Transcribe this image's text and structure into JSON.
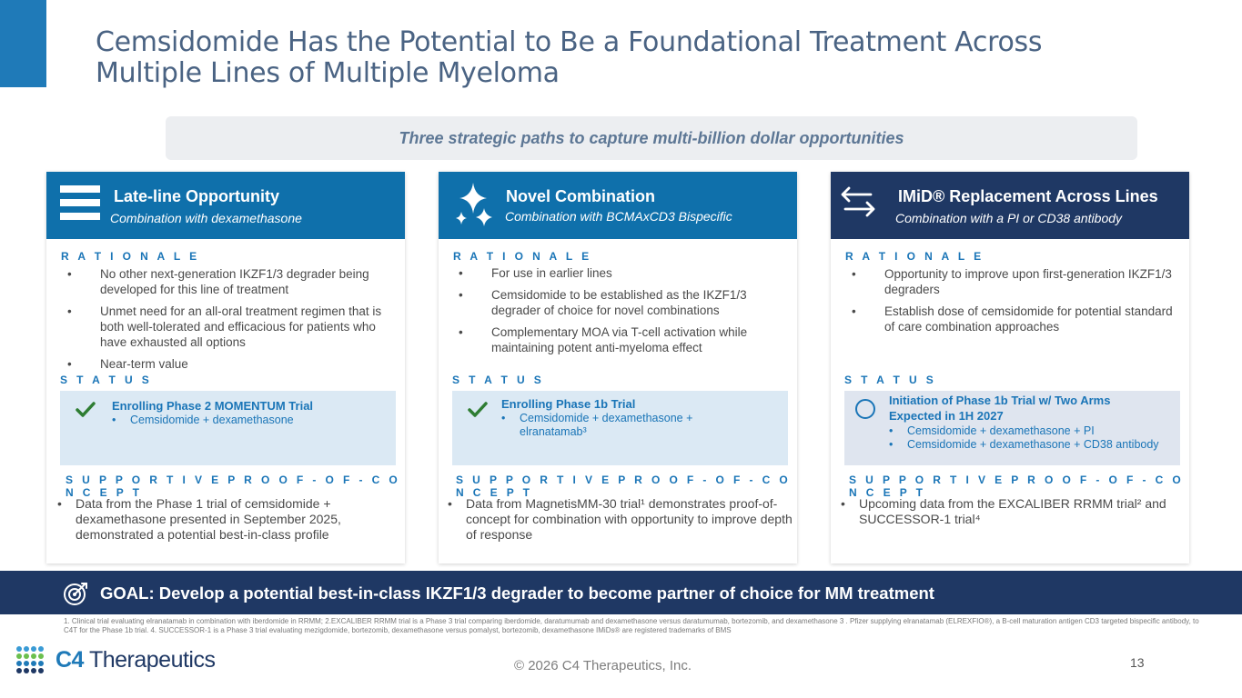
{
  "title_line1": "Cemsidomide Has the Potential to Be a Foundational Treatment Across",
  "title_line2": "Multiple Lines of Multiple Myeloma",
  "banner": "Three strategic paths to capture multi-billion dollar opportunities",
  "section_labels": {
    "rationale": "R A T I O N A L E",
    "status": "S T A T U S",
    "poc": "S U P P O R T I V E   P R O O F - O F - C O N C E P T"
  },
  "colors": {
    "col1_header": "#0f70ab",
    "col2_header": "#0f70ab",
    "col3_header": "#1f3864",
    "goal_bar": "#1f3864",
    "status_fill": "#dbe9f4",
    "status_fill_pending": "#dfe5ef",
    "accent": "#1a75b7",
    "check_green": "#2e7d32"
  },
  "columns": [
    {
      "icon": "list-icon",
      "title": "Late-line Opportunity",
      "subtitle": "Combination with dexamethasone",
      "rationale": [
        "No other next-generation IKZF1/3 degrader being developed for this line of treatment",
        "Unmet need for an all-oral treatment regimen that is both well-tolerated and efficacious for patients who have exhausted all options",
        "Near-term value"
      ],
      "status_icon": "checkmark-icon",
      "status_title": "Enrolling Phase 2 MOMENTUM Trial",
      "status_items": [
        "Cemsidomide + dexamethasone"
      ],
      "poc": "Data from the Phase 1 trial of cemsidomide + dexamethasone presented in September 2025, demonstrated a potential best-in-class profile"
    },
    {
      "icon": "sparkle-icon",
      "title": "Novel Combination",
      "subtitle": "Combination with BCMAxCD3 Bispecific",
      "rationale": [
        "For use in earlier lines",
        "Cemsidomide to be established as the IKZF1/3 degrader of choice for novel combinations",
        "Complementary MOA via T-cell activation while maintaining potent anti-myeloma effect"
      ],
      "status_icon": "checkmark-icon",
      "status_title": "Enrolling Phase 1b Trial",
      "status_items": [
        "Cemsidomide + dexamethasone + elranatamab³"
      ],
      "poc": "Data from MagnetisMM-30 trial¹ demonstrates proof-of-concept for combination with opportunity to improve depth of response"
    },
    {
      "icon": "swap-arrows-icon",
      "title": "IMiD® Replacement Across Lines",
      "subtitle": "Combination with a PI or CD38 antibody",
      "rationale": [
        "Opportunity to improve upon first-generation IKZF1/3 degraders",
        "Establish dose of cemsidomide for potential standard of care combination approaches"
      ],
      "status_icon": "empty-circle-icon",
      "status_title": "Initiation of Phase 1b Trial w/ Two Arms Expected in 1H 2027",
      "status_items": [
        "Cemsidomide + dexamethasone + PI",
        "Cemsidomide + dexamethasone + CD38 antibody"
      ],
      "poc": "Upcoming data from the EXCALIBER RRMM trial² and SUCCESSOR-1 trial⁴"
    }
  ],
  "goal": "GOAL:  Develop a potential best-in-class IKZF1/3 degrader to become partner of choice for MM treatment",
  "footnote": "1. Clinical trial evaluating elranatamab in combination with iberdomide in RRMM; 2.EXCALIBER RRMM trial is a Phase 3 trial comparing iberdomide, daratumumab and dexamethasone versus daratumumab, bortezomib, and dexamethasone 3 . Pfizer supplying elranatamab (ELREXFIO®), a B-cell maturation antigen CD3 targeted bispecific antibody, to C4T for the Phase 1b trial. 4. SUCCESSOR-1 is a Phase 3 trial evaluating mezigdomide, bortezomib, dexamethasone versus pomalyst, bortezomib, dexamethasone IMiDs® are registered trademarks of BMS",
  "copyright": "© 2026 C4 Therapeutics, Inc.",
  "page_number": "13",
  "logo": {
    "c4": "C4",
    "name": "Therapeutics"
  }
}
